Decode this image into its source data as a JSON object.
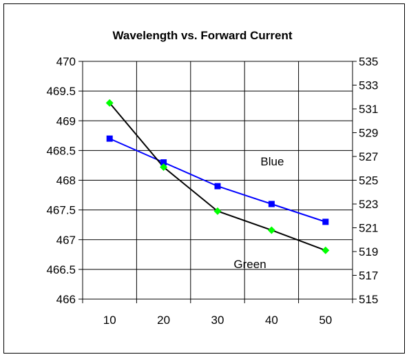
{
  "chart_data": {
    "type": "line",
    "title": "Wavelength vs. Forward Current",
    "xlabel": "",
    "ylabel": "",
    "y2label": "",
    "categories": [
      10,
      20,
      30,
      40,
      50
    ],
    "xlim": [
      5,
      55
    ],
    "ylim": [
      466,
      470
    ],
    "y_ticks": [
      466,
      466.5,
      467,
      467.5,
      468,
      468.5,
      469,
      469.5,
      470
    ],
    "y_tick_labels": [
      "466",
      "466.5",
      "467",
      "467.5",
      "468",
      "468.5",
      "469",
      "469.5",
      "470"
    ],
    "y2lim": [
      515,
      535
    ],
    "y2_ticks": [
      515,
      517,
      519,
      521,
      523,
      525,
      527,
      529,
      531,
      533,
      535
    ],
    "y2_tick_labels": [
      "515",
      "517",
      "519",
      "521",
      "523",
      "525",
      "527",
      "529",
      "531",
      "533",
      "535"
    ],
    "grid": true,
    "legend": "none",
    "series": [
      {
        "name": "Blue",
        "axis": "left",
        "x": [
          10,
          20,
          30,
          40,
          50
        ],
        "values": [
          468.7,
          468.3,
          467.9,
          467.6,
          467.3
        ],
        "line_color": "#0000FF",
        "marker_color": "#0000FF",
        "marker": "square"
      },
      {
        "name": "Green",
        "axis": "right",
        "x": [
          10,
          20,
          30,
          40,
          50
        ],
        "values": [
          531.5,
          526.1,
          522.4,
          520.8,
          519.1
        ],
        "line_color": "#000000",
        "marker_color": "#00FF00",
        "marker": "diamond"
      }
    ],
    "annotations": [
      {
        "text": "Blue",
        "series": "Blue"
      },
      {
        "text": "Green",
        "series": "Green"
      }
    ]
  }
}
